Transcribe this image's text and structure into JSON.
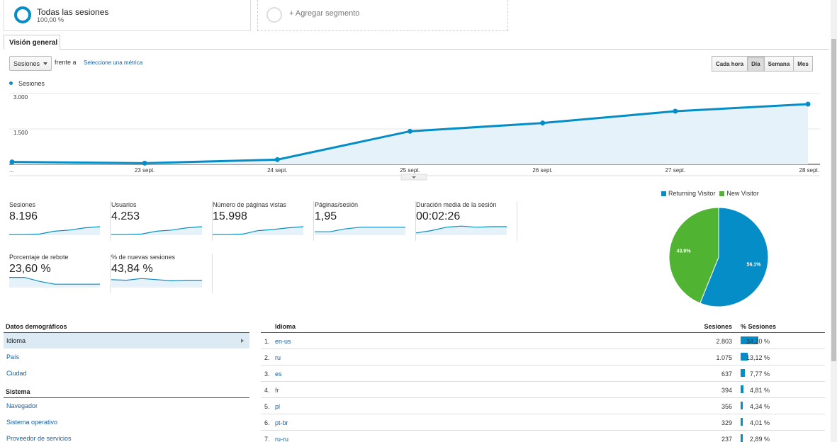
{
  "segments": {
    "active": {
      "title": "Todas las sesiones",
      "subtitle": "100,00 %"
    },
    "add_label": "+ Agregar segmento"
  },
  "tabs": [
    {
      "label": "Visión general"
    }
  ],
  "controls": {
    "metric": "Sesiones",
    "versus": "frente a",
    "select_metric": "Seleccione una métrica",
    "time_buttons": [
      {
        "label": "Cada hora",
        "active": false
      },
      {
        "label": "Día",
        "active": true
      },
      {
        "label": "Semana",
        "active": false
      },
      {
        "label": "Mes",
        "active": false
      }
    ]
  },
  "colors": {
    "accent": "#058dc7",
    "accent_fill": "#e6f2f9",
    "new_visitor": "#50b432",
    "link": "#1a5fa0"
  },
  "chart_data": [
    {
      "type": "area",
      "legend": [
        "Sesiones"
      ],
      "x": [
        "...",
        "23 sept.",
        "24 sept.",
        "25 sept.",
        "26 sept.",
        "27 sept.",
        "28 sept."
      ],
      "series": [
        {
          "name": "Sesiones",
          "values": [
            100,
            50,
            200,
            1400,
            1750,
            2250,
            2550
          ]
        }
      ],
      "yticks": [
        {
          "value": 3000,
          "label": "3.000"
        },
        {
          "value": 1500,
          "label": "1.500"
        }
      ],
      "ylim": [
        0,
        3000
      ],
      "grid": true
    },
    {
      "type": "pie",
      "legend": [
        "Returning Visitor",
        "New Visitor"
      ],
      "slices": [
        {
          "name": "Returning Visitor",
          "value": 56.1,
          "label": "56.1%"
        },
        {
          "name": "New Visitor",
          "value": 43.9,
          "label": "43.9%"
        }
      ]
    }
  ],
  "kpis": [
    {
      "label": "Sesiones",
      "value": "8.196",
      "spark": [
        0.05,
        0.05,
        0.1,
        0.35,
        0.45,
        0.65,
        0.75
      ]
    },
    {
      "label": "Usuarios",
      "value": "4.253",
      "spark": [
        0.05,
        0.05,
        0.1,
        0.35,
        0.45,
        0.65,
        0.75
      ]
    },
    {
      "label": "Número de páginas vistas",
      "value": "15.998",
      "spark": [
        0.05,
        0.05,
        0.1,
        0.4,
        0.5,
        0.65,
        0.75
      ]
    },
    {
      "label": "Páginas/sesión",
      "value": "1,95",
      "spark": [
        0.3,
        0.3,
        0.55,
        0.7,
        0.7,
        0.7,
        0.7
      ]
    },
    {
      "label": "Duración media de la sesión",
      "value": "00:02:26",
      "spark": [
        0.2,
        0.4,
        0.7,
        0.8,
        0.7,
        0.75,
        0.75
      ]
    },
    {
      "label": "Porcentaje de rebote",
      "value": "23,60 %",
      "spark": [
        0.9,
        0.9,
        0.55,
        0.3,
        0.3,
        0.3,
        0.3
      ]
    },
    {
      "label": "% de nuevas sesiones",
      "value": "43,84 %",
      "spark": [
        0.7,
        0.65,
        0.8,
        0.7,
        0.6,
        0.65,
        0.65
      ]
    }
  ],
  "left_list": {
    "demo_header": "Datos demográficos",
    "demo_items": [
      "Idioma",
      "País",
      "Ciudad"
    ],
    "system_header": "Sistema",
    "system_items": [
      "Navegador",
      "Sistema operativo",
      "Proveedor de servicios"
    ]
  },
  "table": {
    "col_lang": "Idioma",
    "col_sessions": "Sesiones",
    "col_pct": "% Sesiones",
    "rows": [
      {
        "n": "1.",
        "lang": "en-us",
        "sessions": "2.803",
        "pct": "34,20 %",
        "share": 0.342
      },
      {
        "n": "2.",
        "lang": "ru",
        "sessions": "1.075",
        "pct": "13,12 %",
        "share": 0.1312
      },
      {
        "n": "3.",
        "lang": "es",
        "sessions": "637",
        "pct": "7,77 %",
        "share": 0.0777
      },
      {
        "n": "4.",
        "lang": "fr",
        "sessions": "394",
        "pct": "4,81 %",
        "share": 0.0481
      },
      {
        "n": "5.",
        "lang": "pl",
        "sessions": "356",
        "pct": "4,34 %",
        "share": 0.0434
      },
      {
        "n": "6.",
        "lang": "pt-br",
        "sessions": "329",
        "pct": "4,01 %",
        "share": 0.0401
      },
      {
        "n": "7.",
        "lang": "ru-ru",
        "sessions": "237",
        "pct": "2,89 %",
        "share": 0.0289
      }
    ]
  }
}
